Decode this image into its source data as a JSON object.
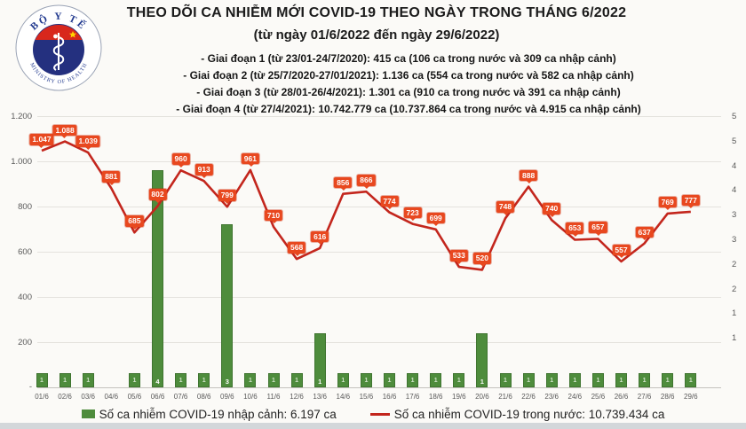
{
  "logo": {
    "top_text": "BỘ Y TẾ",
    "bottom_text": "MINISTRY OF HEALTH"
  },
  "header": {
    "title": "THEO DÕI CA NHIỄM MỚI COVID-19 THEO NGÀY TRONG THÁNG 6/2022",
    "subtitle": "(từ ngày 01/6/2022 đến ngày 29/6/2022)",
    "phases": [
      "- Giai đoạn 1 (từ 23/01-24/7/2020): 415 ca (106 ca trong nước và 309 ca nhập cảnh)",
      "- Giai đoạn 2 (từ 25/7/2020-27/01/2021): 1.136 ca (554 ca trong nước và 582 ca nhập cảnh)",
      "- Giai đoạn 3 (từ 28/01-26/4/2021): 1.301 ca (910 ca trong nước và 391 ca nhập cảnh)",
      "- Giai đoạn 4 (từ 27/4/2021): 10.742.779 ca (10.737.864 ca trong nước và 4.915 ca nhập cảnh)"
    ]
  },
  "legend": {
    "imported_label": "Số ca nhiễm COVID-19 nhập cảnh: 6.197 ca",
    "domestic_label": "Số ca nhiễm COVID-19 trong nước: 10.739.434 ca"
  },
  "colors": {
    "line": "#c3261d",
    "badge": "#e8481f",
    "bar": "#4e8c3c",
    "grid": "#e4e2dd",
    "axis_text": "#595959"
  },
  "chart_data": {
    "type": "line+bar",
    "title": "THEO DÕI CA NHIỄM MỚI COVID-19 THEO NGÀY TRONG THÁNG 6/2022",
    "categories": [
      "01/6",
      "02/6",
      "03/6",
      "04/6",
      "05/6",
      "06/6",
      "07/6",
      "08/6",
      "09/6",
      "10/6",
      "11/6",
      "12/6",
      "13/6",
      "14/6",
      "15/6",
      "16/6",
      "17/6",
      "18/6",
      "19/6",
      "20/6",
      "21/6",
      "22/6",
      "23/6",
      "24/6",
      "25/6",
      "26/6",
      "27/6",
      "28/6",
      "29/6"
    ],
    "series": [
      {
        "name": "Số ca nhiễm COVID-19 trong nước",
        "type": "line",
        "values": [
          1047,
          1088,
          1039,
          881,
          685,
          802,
          960,
          913,
          799,
          961,
          710,
          568,
          616,
          856,
          866,
          774,
          723,
          699,
          533,
          520,
          748,
          888,
          740,
          653,
          657,
          557,
          637,
          769,
          777
        ],
        "labels": [
          "1.047",
          "1.088",
          "1.039",
          "881",
          "685",
          "802",
          "960",
          "913",
          "799",
          "961",
          "710",
          "568",
          "616",
          "856",
          "866",
          "774",
          "723",
          "699",
          "533",
          "520",
          "748",
          "888",
          "740",
          "653",
          "657",
          "557",
          "637",
          "769",
          "777"
        ]
      },
      {
        "name": "Số ca nhiễm COVID-19 nhập cảnh",
        "type": "bar",
        "values": [
          1,
          1,
          1,
          0,
          1,
          4,
          1,
          1,
          3,
          1,
          1,
          1,
          1,
          1,
          1,
          1,
          1,
          1,
          1,
          1,
          1,
          1,
          1,
          1,
          1,
          1,
          1,
          1,
          1
        ],
        "scaled_days": [
          6,
          9,
          13,
          20
        ]
      }
    ],
    "axis_left": {
      "min": 0,
      "max": 1200,
      "step": 200,
      "ticks": [
        "1.200",
        "1.000",
        "800",
        "600",
        "400",
        "200",
        "-"
      ]
    },
    "axis_right": {
      "visible_labels": [
        "5",
        "5",
        "4",
        "4",
        "3",
        "3",
        "2",
        "2",
        "1",
        "1"
      ],
      "note": "labels truncated by image edge"
    },
    "grid": "horizontal-major",
    "legend_position": "bottom"
  }
}
